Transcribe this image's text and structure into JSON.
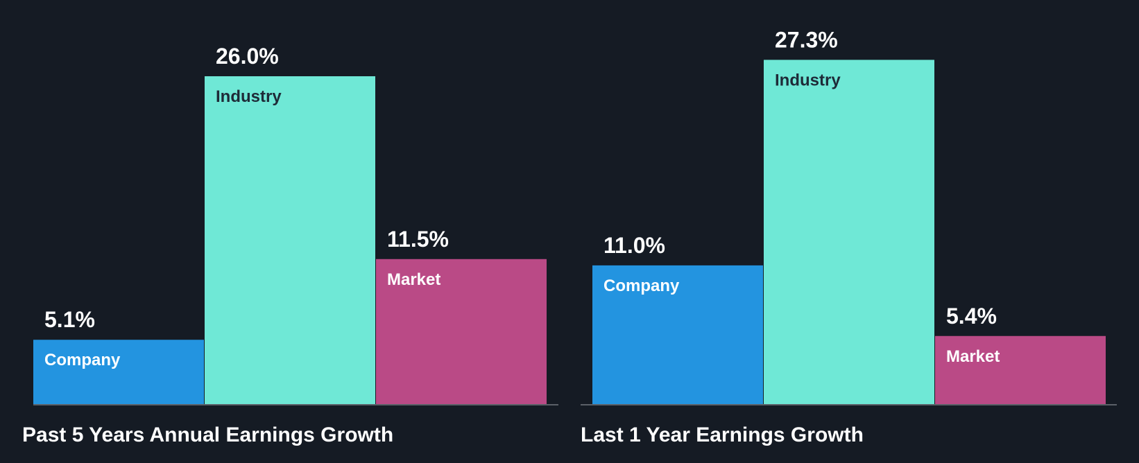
{
  "chart_data": [
    {
      "type": "bar",
      "title": "Past 5 Years Annual Earnings Growth",
      "categories": [
        "Company",
        "Industry",
        "Market"
      ],
      "values": [
        5.1,
        26.0,
        11.5
      ],
      "value_labels": [
        "5.1%",
        "26.0%",
        "11.5%"
      ],
      "unit": "%",
      "ylim": [
        0,
        30
      ],
      "grid": false,
      "legend": "none"
    },
    {
      "type": "bar",
      "title": "Last 1 Year Earnings Growth",
      "categories": [
        "Company",
        "Industry",
        "Market"
      ],
      "values": [
        11.0,
        27.3,
        5.4
      ],
      "value_labels": [
        "11.0%",
        "27.3%",
        "5.4%"
      ],
      "unit": "%",
      "ylim": [
        0,
        30
      ],
      "grid": false,
      "legend": "none"
    }
  ],
  "colors": {
    "background": "#151b24",
    "company": "#2394e0",
    "industry": "#6fe8d6",
    "market": "#ba4a86",
    "baseline": "#5b6068",
    "value_text": "#ffffff",
    "label_on_light": "#1e2b38",
    "label_on_dark": "#ffffff"
  }
}
